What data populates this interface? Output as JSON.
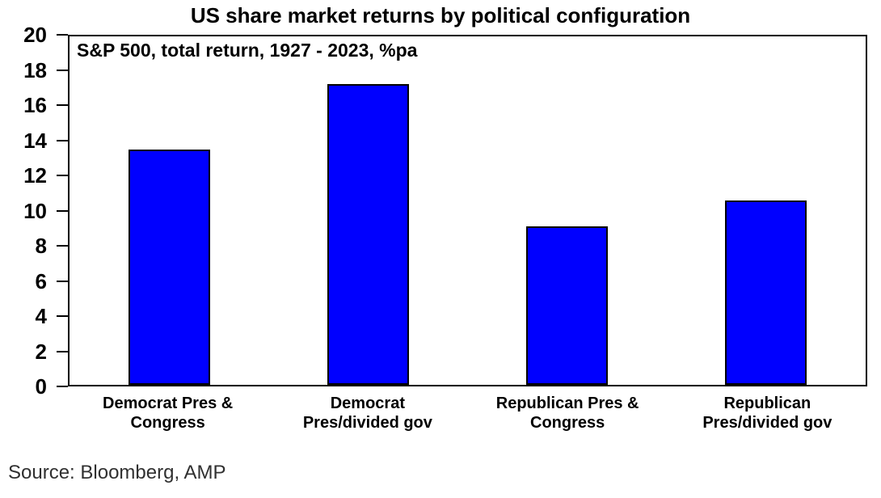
{
  "chart_data": {
    "type": "bar",
    "title": "US share market returns by political configuration",
    "subtitle": "S&P 500, total return, 1927 - 2023, %pa",
    "categories": [
      "Democrat Pres &\nCongress",
      "Democrat\nPres/divided gov",
      "Republican Pres &\nCongress",
      "Republican\nPres/divided gov"
    ],
    "values": [
      13.3,
      17.1,
      8.9,
      10.4
    ],
    "xlabel": "",
    "ylabel": "",
    "ylim": [
      0,
      20
    ],
    "yticks": [
      0,
      2,
      4,
      6,
      8,
      10,
      12,
      14,
      16,
      18,
      20
    ],
    "grid": false,
    "legend": "none",
    "bar_color": "#0000FF",
    "bar_border_color": "#000000",
    "source": "Source: Bloomberg, AMP"
  }
}
